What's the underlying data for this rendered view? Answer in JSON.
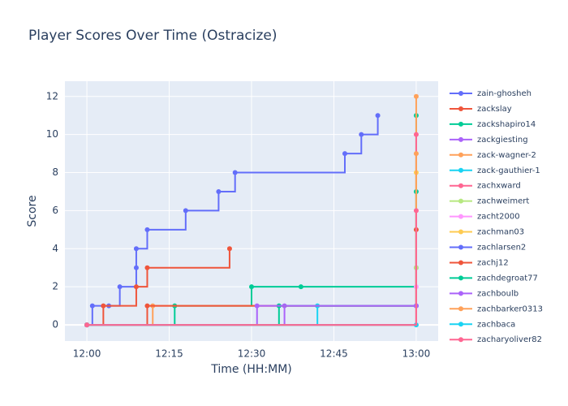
{
  "chart_data": {
    "type": "step-line",
    "title": "Player Scores Over Time (Ostracize)",
    "xlabel": "Time (HH:MM)",
    "ylabel": "Score",
    "xlim": [
      "11:56",
      "13:04"
    ],
    "xticks": [
      "12:00",
      "12:15",
      "12:30",
      "12:45",
      "13:00"
    ],
    "ylim": [
      -0.85,
      12.8
    ],
    "yticks": [
      0,
      2,
      4,
      6,
      8,
      10,
      12
    ],
    "grid": true,
    "legend": "right",
    "series": [
      {
        "name": "zain-ghosheh",
        "color": "#636efa",
        "x": [
          "12:00",
          "12:01",
          "12:04",
          "12:06",
          "12:09",
          "12:09",
          "12:11",
          "12:18",
          "12:24",
          "12:27",
          "12:47",
          "12:50",
          "12:53"
        ],
        "values": [
          0,
          1,
          1,
          2,
          3,
          4,
          5,
          6,
          7,
          8,
          9,
          10,
          11
        ]
      },
      {
        "name": "zackslay",
        "color": "#ef553b",
        "x": [
          "12:00",
          "12:03",
          "12:09",
          "12:11",
          "12:26"
        ],
        "values": [
          0,
          1,
          2,
          3,
          4
        ]
      },
      {
        "name": "zackshapiro14",
        "color": "#00cc96",
        "x": [
          "12:00",
          "12:16",
          "12:30",
          "12:39",
          "13:00"
        ],
        "values": [
          0,
          1,
          2,
          2,
          11
        ]
      },
      {
        "name": "zackgiesting",
        "color": "#ab63fa",
        "x": [
          "12:00",
          "12:36",
          "13:00"
        ],
        "values": [
          0,
          1,
          3
        ]
      },
      {
        "name": "zack-wagner-2",
        "color": "#ffa15a",
        "x": [
          "12:00",
          "12:12",
          "13:00"
        ],
        "values": [
          0,
          1,
          12
        ]
      },
      {
        "name": "zack-gauthier-1",
        "color": "#19d3f3",
        "x": [
          "12:00",
          "12:42",
          "13:00"
        ],
        "values": [
          0,
          1,
          1
        ]
      },
      {
        "name": "zachxward",
        "color": "#ff6692",
        "x": [
          "12:00",
          "13:00"
        ],
        "values": [
          0,
          10
        ]
      },
      {
        "name": "zachweimert",
        "color": "#b6e880",
        "x": [
          "12:00",
          "13:00"
        ],
        "values": [
          0,
          3
        ]
      },
      {
        "name": "zacht2000",
        "color": "#ff97ff",
        "x": [
          "12:00",
          "13:00"
        ],
        "values": [
          0,
          2
        ]
      },
      {
        "name": "zachman03",
        "color": "#fecb52",
        "x": [
          "12:00",
          "13:00"
        ],
        "values": [
          0,
          8
        ]
      },
      {
        "name": "zachlarsen2",
        "color": "#636efa",
        "x": [
          "12:00",
          "13:00"
        ],
        "values": [
          0,
          1
        ]
      },
      {
        "name": "zachj12",
        "color": "#ef553b",
        "x": [
          "12:00",
          "12:11",
          "13:00"
        ],
        "values": [
          0,
          1,
          5
        ]
      },
      {
        "name": "zachdegroat77",
        "color": "#00cc96",
        "x": [
          "12:00",
          "12:35",
          "13:00"
        ],
        "values": [
          0,
          1,
          7
        ]
      },
      {
        "name": "zachboulb",
        "color": "#ab63fa",
        "x": [
          "12:00",
          "12:31",
          "13:00"
        ],
        "values": [
          0,
          1,
          1
        ]
      },
      {
        "name": "zachbarker0313",
        "color": "#ffa15a",
        "x": [
          "12:00",
          "13:00"
        ],
        "values": [
          0,
          9
        ]
      },
      {
        "name": "zachbaca",
        "color": "#19d3f3",
        "x": [
          "12:00",
          "13:00"
        ],
        "values": [
          0,
          0
        ]
      },
      {
        "name": "zacharyoliver82",
        "color": "#ff6692",
        "x": [
          "12:00",
          "13:00"
        ],
        "values": [
          0,
          6
        ]
      }
    ]
  }
}
